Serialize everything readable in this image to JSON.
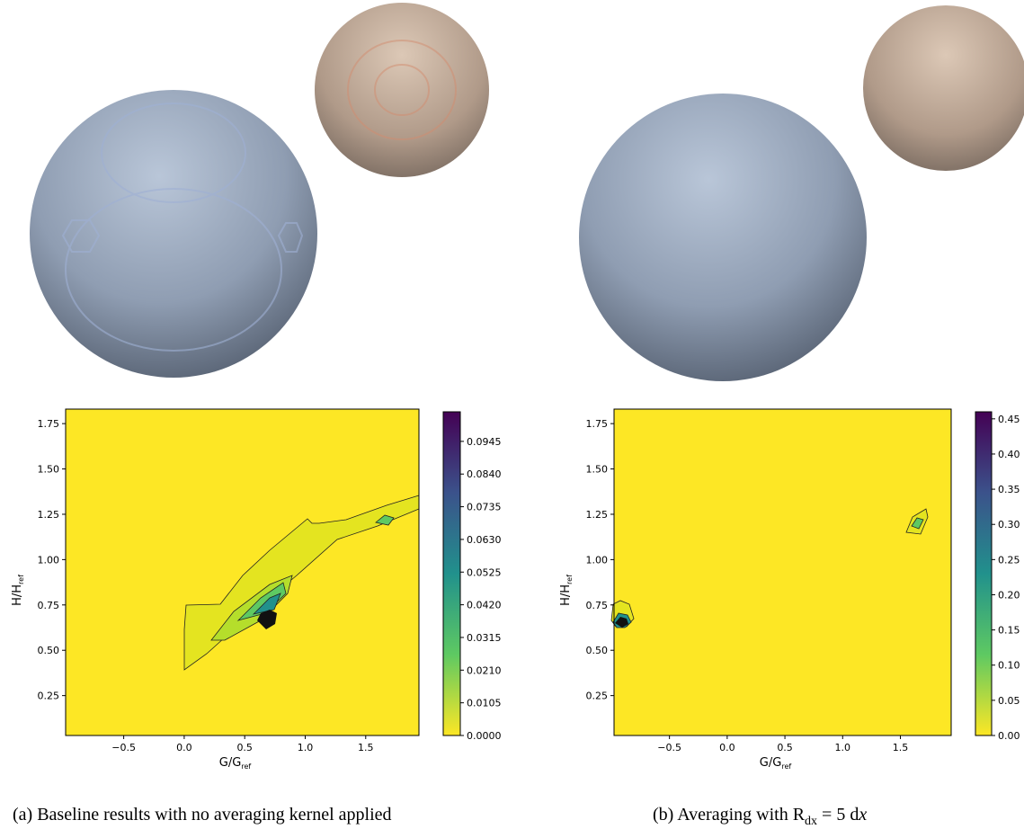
{
  "panels": [
    {
      "caption": {
        "text": "(a) Baseline results with no averaging kernel applied"
      },
      "plot": {
        "xlabel": {
          "text": "G/G",
          "sub": "ref"
        },
        "ylabel": {
          "text": "H/H",
          "sub": "ref"
        },
        "xlim": [
          -0.98,
          1.94
        ],
        "ylim": [
          0.03,
          1.83
        ],
        "xticks": [
          {
            "value": -0.5,
            "label": "−0.5"
          },
          {
            "value": 0,
            "label": "0.0"
          },
          0.5,
          {
            "value": 1,
            "label": "1.0"
          },
          1.5
        ],
        "yticks": [
          0.25,
          {
            "value": 0.5,
            "label": "0.50"
          },
          0.75,
          {
            "value": 1,
            "label": "1.00"
          },
          1.25,
          {
            "value": 1.5,
            "label": "1.50"
          },
          1.75
        ],
        "colorbar": {
          "lim": [
            0,
            0.104
          ],
          "ticks": [
            {
              "value": 0,
              "label": "0.0000"
            },
            0.0105,
            {
              "value": 0.021,
              "label": "0.0210"
            },
            0.0315,
            {
              "value": 0.042,
              "label": "0.0420"
            },
            0.0525,
            {
              "value": 0.063,
              "label": "0.0630"
            },
            0.0735,
            {
              "value": 0.084,
              "label": "0.0840"
            },
            0.0945
          ]
        }
      }
    },
    {
      "caption": {
        "text": "(b) Averaging with R",
        "sub": "dx",
        "rest": " = 5 d",
        "italic": "x"
      },
      "plot": {
        "xlabel": {
          "text": "G/G",
          "sub": "ref"
        },
        "ylabel": {
          "text": "H/H",
          "sub": "ref"
        },
        "xlim": [
          -0.98,
          1.94
        ],
        "ylim": [
          0.03,
          1.83
        ],
        "xticks": [
          {
            "value": -0.5,
            "label": "−0.5"
          },
          {
            "value": 0,
            "label": "0.0"
          },
          0.5,
          {
            "value": 1,
            "label": "1.0"
          },
          1.5
        ],
        "yticks": [
          0.25,
          {
            "value": 0.5,
            "label": "0.50"
          },
          0.75,
          {
            "value": 1,
            "label": "1.00"
          },
          1.25,
          {
            "value": 1.5,
            "label": "1.50"
          },
          1.75
        ],
        "colorbar": {
          "lim": [
            0,
            0.46
          ],
          "ticks": [
            {
              "value": 0,
              "label": "0.00"
            },
            0.05,
            {
              "value": 0.1,
              "label": "0.10"
            },
            0.15,
            {
              "value": 0.2,
              "label": "0.20"
            },
            0.25,
            {
              "value": 0.3,
              "label": "0.30"
            },
            0.35,
            {
              "value": 0.4,
              "label": "0.40"
            },
            0.45
          ]
        }
      }
    }
  ]
}
